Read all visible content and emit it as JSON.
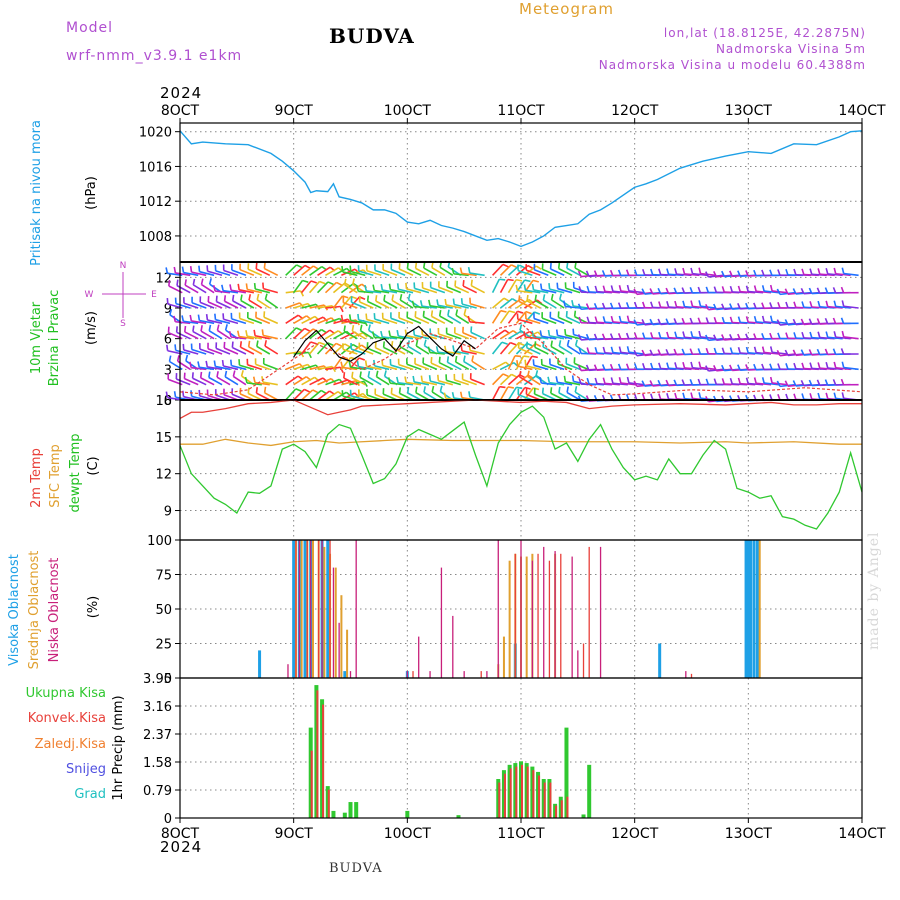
{
  "header": {
    "model_label": "Model",
    "model_name": "wrf-nmm_v3.9.1  e1km",
    "location_title": "BUDVA",
    "product": "Meteogram",
    "coords": "lon,lat (18.8125E, 42.2875N)",
    "elevation": "Nadmorska Visina 5m",
    "model_elevation": "Nadmorska Visina u modelu 60.4388m"
  },
  "footer": {
    "location": "BUDVA",
    "watermark": "made by Angel"
  },
  "colors": {
    "pressure": "#1ea0e6",
    "temp2m": "#e8403a",
    "sfc_temp": "#e0a030",
    "dewpt": "#30c830",
    "high_cloud": "#1ea0e6",
    "mid_cloud": "#e0a030",
    "low_cloud": "#c8207a",
    "total_precip": "#30c830",
    "conv_precip": "#e8403a",
    "frz_precip": "#f08030",
    "snow": "#5050e0",
    "hail": "#20c0c0",
    "wind_axis": "#c040c0",
    "grid": "#888888"
  },
  "chart_data": [
    {
      "type": "line",
      "title": "",
      "ylabel": "Pritisak na nivou mora",
      "unit_label": "(hPa)",
      "x_ticks": [
        "8OCT",
        "9OCT",
        "10OCT",
        "11OCT",
        "12OCT",
        "13OCT",
        "14OCT"
      ],
      "x_year": "2024",
      "x_range_days": [
        8,
        14
      ],
      "ylim": [
        1005,
        1021
      ],
      "yticks": [
        "1008",
        "1012",
        "1016",
        "1020"
      ],
      "grid": true,
      "series": [
        {
          "color": "pressure",
          "x": [
            8.0,
            8.1,
            8.2,
            8.4,
            8.6,
            8.8,
            8.9,
            9.0,
            9.1,
            9.15,
            9.2,
            9.3,
            9.35,
            9.4,
            9.5,
            9.6,
            9.7,
            9.8,
            9.9,
            10.0,
            10.1,
            10.2,
            10.3,
            10.4,
            10.5,
            10.6,
            10.7,
            10.8,
            10.9,
            11.0,
            11.1,
            11.2,
            11.3,
            11.4,
            11.5,
            11.6,
            11.7,
            11.8,
            12.0,
            12.1,
            12.2,
            12.4,
            12.6,
            12.8,
            13.0,
            13.2,
            13.4,
            13.6,
            13.8,
            13.9,
            14.0
          ],
          "values": [
            1020.1,
            1018.6,
            1018.8,
            1018.6,
            1018.5,
            1017.5,
            1016.6,
            1015.5,
            1014.2,
            1013.0,
            1013.2,
            1013.1,
            1014.0,
            1012.5,
            1012.2,
            1011.8,
            1011.0,
            1011.0,
            1010.6,
            1009.6,
            1009.4,
            1009.8,
            1009.2,
            1008.9,
            1008.5,
            1008.0,
            1007.5,
            1007.7,
            1007.3,
            1006.8,
            1007.3,
            1008.0,
            1009.0,
            1009.2,
            1009.4,
            1010.5,
            1011.0,
            1011.8,
            1013.6,
            1014.0,
            1014.5,
            1015.8,
            1016.6,
            1017.2,
            1017.7,
            1017.5,
            1018.6,
            1018.5,
            1019.4,
            1020.0,
            1020.1
          ]
        }
      ]
    },
    {
      "type": "line",
      "title": "",
      "ylabel": "10m Vjetar",
      "ylabel2": "Brzina i Pravac",
      "unit_label": "(m/s)",
      "compass": [
        "N",
        "W",
        "E",
        "S"
      ],
      "ylim": [
        0,
        13.5
      ],
      "yticks": [
        "0",
        "3",
        "6",
        "9",
        "12"
      ],
      "wind_rows": [
        0,
        1.5,
        3,
        4.5,
        6,
        7.5,
        9,
        10.5,
        12.2
      ],
      "grid": true,
      "series": [
        {
          "color": "temp2m",
          "x": [
            8.0,
            8.3,
            8.6,
            8.8,
            9.0,
            9.2,
            9.4,
            9.6,
            9.8,
            10.0,
            10.2,
            10.4,
            10.6,
            10.8,
            11.0,
            11.2,
            11.4,
            11.6,
            11.8,
            12.0,
            12.5,
            13.0,
            13.5,
            14.0
          ],
          "values": [
            0.8,
            0.5,
            1.0,
            2.5,
            4.0,
            5.5,
            4.5,
            3.0,
            4.0,
            5.5,
            6.5,
            5.8,
            5.0,
            7.0,
            7.5,
            5.5,
            3.0,
            1.5,
            0.5,
            0.6,
            1.0,
            0.8,
            1.2,
            0.8
          ]
        },
        {
          "color": "#000000",
          "x": [
            9.0,
            9.1,
            9.2,
            9.3,
            9.4,
            9.5,
            9.6,
            9.7,
            9.8,
            9.9,
            10.0,
            10.1,
            10.2,
            10.3,
            10.4,
            10.5,
            10.6
          ],
          "values": [
            4.2,
            5.8,
            6.8,
            5.5,
            4.2,
            3.8,
            4.5,
            5.6,
            6.0,
            4.8,
            6.5,
            7.2,
            6.1,
            5.0,
            4.3,
            5.8,
            5.0
          ]
        }
      ]
    },
    {
      "type": "line",
      "title": "",
      "ylabel": "2m Temp",
      "ylabel2": "SFC Temp",
      "ylabel3": "dewpt Temp",
      "unit_label": "(C)",
      "ylim": [
        6.6,
        18
      ],
      "yticks": [
        "9",
        "12",
        "15",
        "18"
      ],
      "grid": true,
      "series": [
        {
          "color": "temp2m",
          "x": [
            8.0,
            8.1,
            8.2,
            8.4,
            8.6,
            8.8,
            9.0,
            9.1,
            9.2,
            9.3,
            9.4,
            9.5,
            9.6,
            9.8,
            10.0,
            10.2,
            10.4,
            10.6,
            10.8,
            11.0,
            11.2,
            11.4,
            11.6,
            11.8,
            12.0,
            12.4,
            12.8,
            13.0,
            13.2,
            13.4,
            13.6,
            13.8,
            14.0
          ],
          "values": [
            16.5,
            17.0,
            17.0,
            17.3,
            17.7,
            17.8,
            18.0,
            17.6,
            17.2,
            16.8,
            17.0,
            17.2,
            17.5,
            17.6,
            17.7,
            17.8,
            17.9,
            18.0,
            17.9,
            17.8,
            17.9,
            17.8,
            17.3,
            17.5,
            17.6,
            17.7,
            17.6,
            17.7,
            17.8,
            17.6,
            17.6,
            17.7,
            17.7
          ]
        },
        {
          "color": "sfc_temp",
          "x": [
            8.0,
            8.2,
            8.4,
            8.6,
            8.8,
            9.0,
            9.2,
            9.4,
            9.6,
            9.8,
            10.0,
            10.4,
            10.8,
            11.0,
            11.4,
            11.8,
            12.0,
            12.4,
            12.8,
            13.0,
            13.4,
            13.8,
            14.0
          ],
          "values": [
            14.4,
            14.4,
            14.8,
            14.5,
            14.3,
            14.6,
            14.7,
            14.5,
            14.6,
            14.7,
            14.8,
            14.7,
            14.7,
            14.7,
            14.6,
            14.6,
            14.6,
            14.5,
            14.6,
            14.5,
            14.6,
            14.4,
            14.4
          ]
        },
        {
          "color": "dewpt",
          "x": [
            8.0,
            8.1,
            8.2,
            8.3,
            8.4,
            8.5,
            8.6,
            8.7,
            8.8,
            8.9,
            9.0,
            9.1,
            9.2,
            9.3,
            9.4,
            9.5,
            9.6,
            9.7,
            9.8,
            9.9,
            10.0,
            10.1,
            10.2,
            10.3,
            10.4,
            10.5,
            10.6,
            10.7,
            10.8,
            10.9,
            11.0,
            11.1,
            11.2,
            11.3,
            11.4,
            11.5,
            11.6,
            11.7,
            11.8,
            11.9,
            12.0,
            12.1,
            12.2,
            12.3,
            12.4,
            12.5,
            12.6,
            12.7,
            12.8,
            12.9,
            13.0,
            13.1,
            13.2,
            13.3,
            13.4,
            13.5,
            13.6,
            13.7,
            13.8,
            13.9,
            14.0
          ],
          "values": [
            14.3,
            12.0,
            11.0,
            10.0,
            9.5,
            8.8,
            10.5,
            10.4,
            11.0,
            14.0,
            14.4,
            13.8,
            12.5,
            15.2,
            16.0,
            15.7,
            13.5,
            11.2,
            11.6,
            12.8,
            15.0,
            15.6,
            15.2,
            14.8,
            15.5,
            16.2,
            13.5,
            11.0,
            14.5,
            16.0,
            17.0,
            17.5,
            16.6,
            14.0,
            14.5,
            13.0,
            14.8,
            16.0,
            14.0,
            12.5,
            11.5,
            11.8,
            11.5,
            13.2,
            12.0,
            12.0,
            13.5,
            14.7,
            14.0,
            10.8,
            10.5,
            10.0,
            10.2,
            8.5,
            8.3,
            7.8,
            7.5,
            8.8,
            10.5,
            13.7,
            10.5
          ]
        }
      ]
    },
    {
      "type": "bar",
      "title": "",
      "ylabel": "Visoka Oblacnost",
      "ylabel2": "Srednja Oblacnost",
      "ylabel3": "Niska Oblacnost",
      "unit_label": "(%)",
      "ylim": [
        0,
        100
      ],
      "yticks": [
        "0",
        "25",
        "50",
        "75",
        "100"
      ],
      "grid": true,
      "series": [
        {
          "color": "high_cloud",
          "x": [
            8.7,
            9.0,
            9.05,
            9.1,
            9.15,
            9.25,
            9.3,
            9.45,
            10.0,
            10.95,
            12.22,
            12.98,
            13.0,
            13.02,
            13.05,
            13.08
          ],
          "values": [
            20,
            100,
            100,
            100,
            100,
            100,
            100,
            5,
            5,
            25,
            25,
            100,
            100,
            100,
            100,
            100
          ]
        },
        {
          "color": "mid_cloud",
          "x": [
            9.02,
            9.07,
            9.12,
            9.17,
            9.22,
            9.27,
            9.32,
            9.37,
            9.42,
            9.47,
            10.8,
            10.85,
            10.9,
            10.95,
            11.0,
            11.05,
            11.1,
            11.3,
            13.1
          ],
          "values": [
            100,
            100,
            100,
            100,
            100,
            95,
            90,
            80,
            60,
            35,
            10,
            30,
            85,
            90,
            88,
            88,
            90,
            90,
            100
          ]
        },
        {
          "color": "low_cloud",
          "x": [
            8.95,
            9.05,
            9.15,
            9.25,
            9.35,
            9.4,
            9.5,
            9.55,
            10.0,
            10.1,
            10.2,
            10.3,
            10.4,
            10.5,
            10.7,
            10.8,
            11.0,
            11.1,
            11.2,
            11.3,
            11.45,
            11.5,
            11.7,
            12.45
          ],
          "values": [
            10,
            100,
            100,
            100,
            80,
            40,
            5,
            100,
            5,
            30,
            5,
            80,
            45,
            5,
            5,
            100,
            100,
            85,
            95,
            92,
            88,
            20,
            95,
            5
          ]
        },
        {
          "color": "temp2m",
          "x": [
            9.02,
            9.12,
            9.22,
            9.32,
            10.05,
            10.65,
            10.95,
            11.15,
            11.25,
            11.35,
            11.55,
            11.6,
            12.5
          ],
          "values": [
            100,
            100,
            100,
            100,
            5,
            5,
            90,
            90,
            85,
            90,
            25,
            95,
            3
          ]
        }
      ]
    },
    {
      "type": "bar",
      "title": "",
      "ylabel": "1hr Precip",
      "unit_label": "(mm)",
      "legend": [
        "Ukupna Kisa",
        "Konvek.Kisa",
        "Zaledj.Kisa",
        "Snijeg",
        "Grad"
      ],
      "legend_colors": [
        "total_precip",
        "conv_precip",
        "frz_precip",
        "snow",
        "hail"
      ],
      "ylim": [
        0,
        3.95
      ],
      "yticks": [
        "0",
        "0.79",
        "1.58",
        "2.37",
        "3.16",
        "3.95"
      ],
      "grid": true,
      "series": [
        {
          "color": "total_precip",
          "x": [
            9.15,
            9.2,
            9.25,
            9.3,
            9.35,
            9.45,
            9.5,
            9.55,
            10.0,
            10.45,
            10.8,
            10.85,
            10.9,
            10.95,
            11.0,
            11.05,
            11.1,
            11.15,
            11.2,
            11.25,
            11.3,
            11.35,
            11.4,
            11.55,
            11.6,
            11.8
          ],
          "values": [
            2.55,
            3.75,
            3.35,
            0.9,
            0.2,
            0.15,
            0.45,
            0.45,
            0.2,
            0.08,
            1.1,
            1.35,
            1.5,
            1.55,
            1.6,
            1.55,
            1.45,
            1.3,
            1.1,
            1.1,
            0.4,
            0.6,
            2.55,
            0.1,
            1.5,
            0.0
          ]
        },
        {
          "color": "conv_precip",
          "x": [
            9.15,
            9.2,
            9.25,
            9.3,
            10.8,
            10.85,
            10.9,
            10.95,
            11.0,
            11.05,
            11.1,
            11.15,
            11.2,
            11.25,
            11.3,
            11.35,
            11.4
          ],
          "values": [
            1.9,
            3.6,
            3.2,
            0.8,
            1.0,
            1.25,
            1.4,
            1.45,
            1.5,
            1.45,
            1.35,
            1.2,
            1.0,
            1.0,
            0.35,
            0.5,
            0.6
          ]
        }
      ]
    }
  ],
  "footer_year": "2024"
}
